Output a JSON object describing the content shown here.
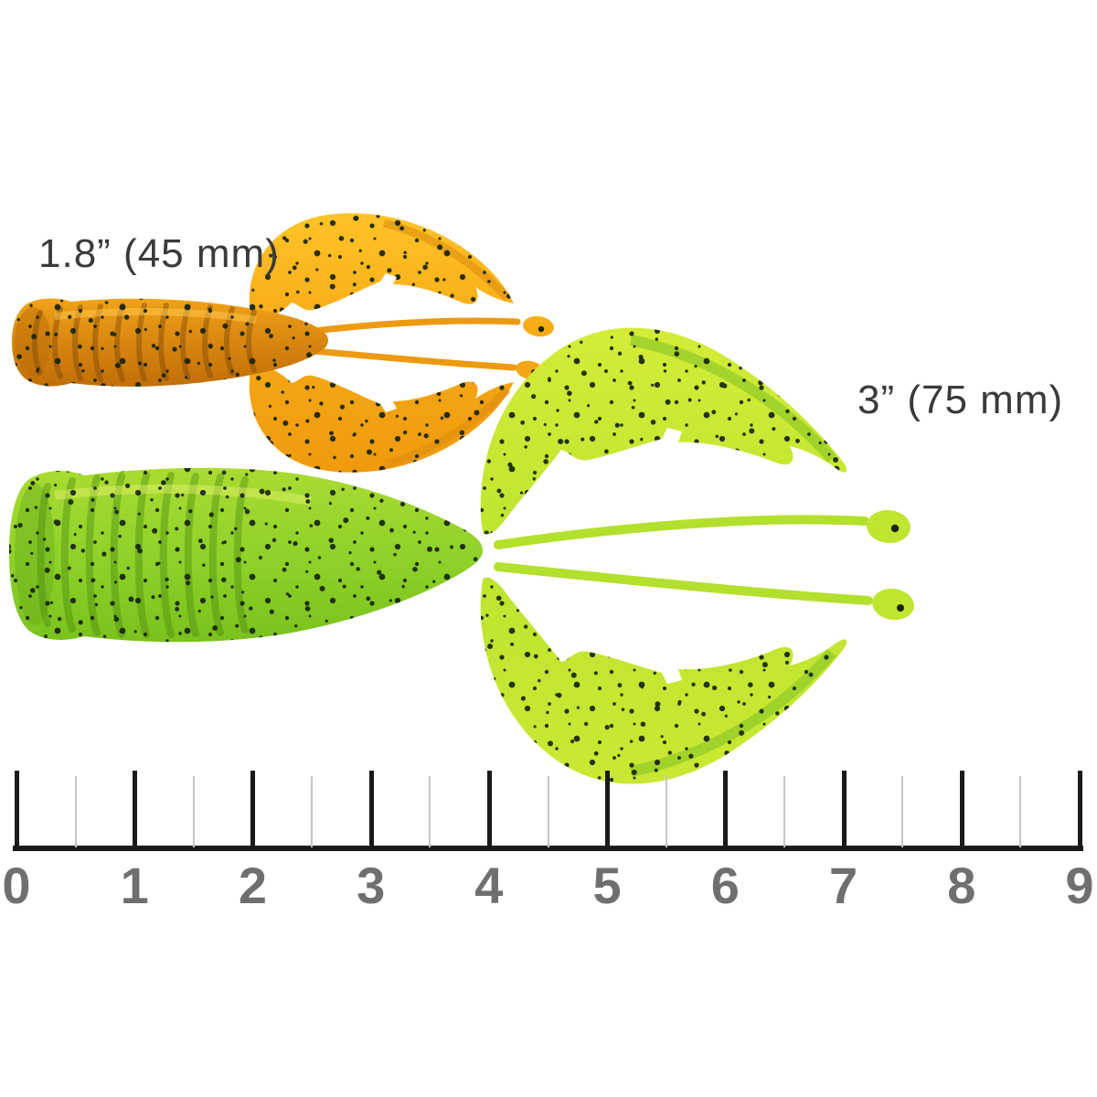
{
  "scene": {
    "background": "#FFFFFF"
  },
  "lures": {
    "small": {
      "size_label": "1.8” (45 mm)",
      "body_color": "#D8860F",
      "claw_color": "#F7AC16"
    },
    "large": {
      "size_label": "3” (75 mm)",
      "body_color": "#8FD22A",
      "claw_color": "#C6E62F"
    }
  },
  "ruler": {
    "unit_numbers": [
      "0",
      "1",
      "2",
      "3",
      "4",
      "5",
      "6",
      "7",
      "8",
      "9"
    ],
    "line_color": "#1A1A1A",
    "minor_tick_color": "#C6C6C6",
    "number_color": "#6F6F6F"
  }
}
